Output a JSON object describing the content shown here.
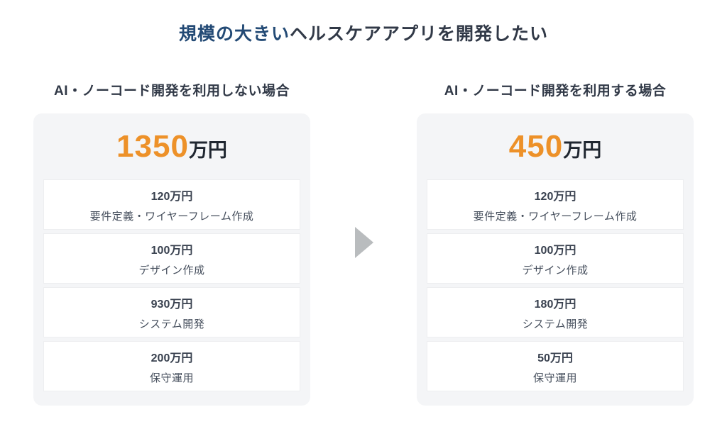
{
  "title": {
    "highlight": "規模の大きい",
    "rest": "ヘルスケアアプリを開発したい"
  },
  "colors": {
    "title_blue": "#234A75",
    "text_dark": "#313947",
    "accent_orange": "#ED9129",
    "panel_bg": "#F4F5F7",
    "arrow_gray": "#B9BCBE"
  },
  "icons": {
    "arrow": "right-triangle"
  },
  "panels": [
    {
      "header": "AI・ノーコード開発を利用しない場合",
      "total_value": "1350",
      "total_unit": "万円",
      "items": [
        {
          "price": "120万円",
          "label": "要件定義・ワイヤーフレーム作成"
        },
        {
          "price": "100万円",
          "label": "デザイン作成"
        },
        {
          "price": "930万円",
          "label": "システム開発"
        },
        {
          "price": "200万円",
          "label": "保守運用"
        }
      ]
    },
    {
      "header": "AI・ノーコード開発を利用する場合",
      "total_value": "450",
      "total_unit": "万円",
      "items": [
        {
          "price": "120万円",
          "label": "要件定義・ワイヤーフレーム作成"
        },
        {
          "price": "100万円",
          "label": "デザイン作成"
        },
        {
          "price": "180万円",
          "label": "システム開発"
        },
        {
          "price": "50万円",
          "label": "保守運用"
        }
      ]
    }
  ],
  "chart_data": {
    "type": "table",
    "title": "規模の大きいヘルスケアアプリを開発したい",
    "unit": "万円",
    "categories": [
      "要件定義・ワイヤーフレーム作成",
      "デザイン作成",
      "システム開発",
      "保守運用"
    ],
    "series": [
      {
        "name": "AI・ノーコード開発を利用しない場合",
        "total": 1350,
        "values": [
          120,
          100,
          930,
          200
        ]
      },
      {
        "name": "AI・ノーコード開発を利用する場合",
        "total": 450,
        "values": [
          120,
          100,
          180,
          50
        ]
      }
    ]
  }
}
